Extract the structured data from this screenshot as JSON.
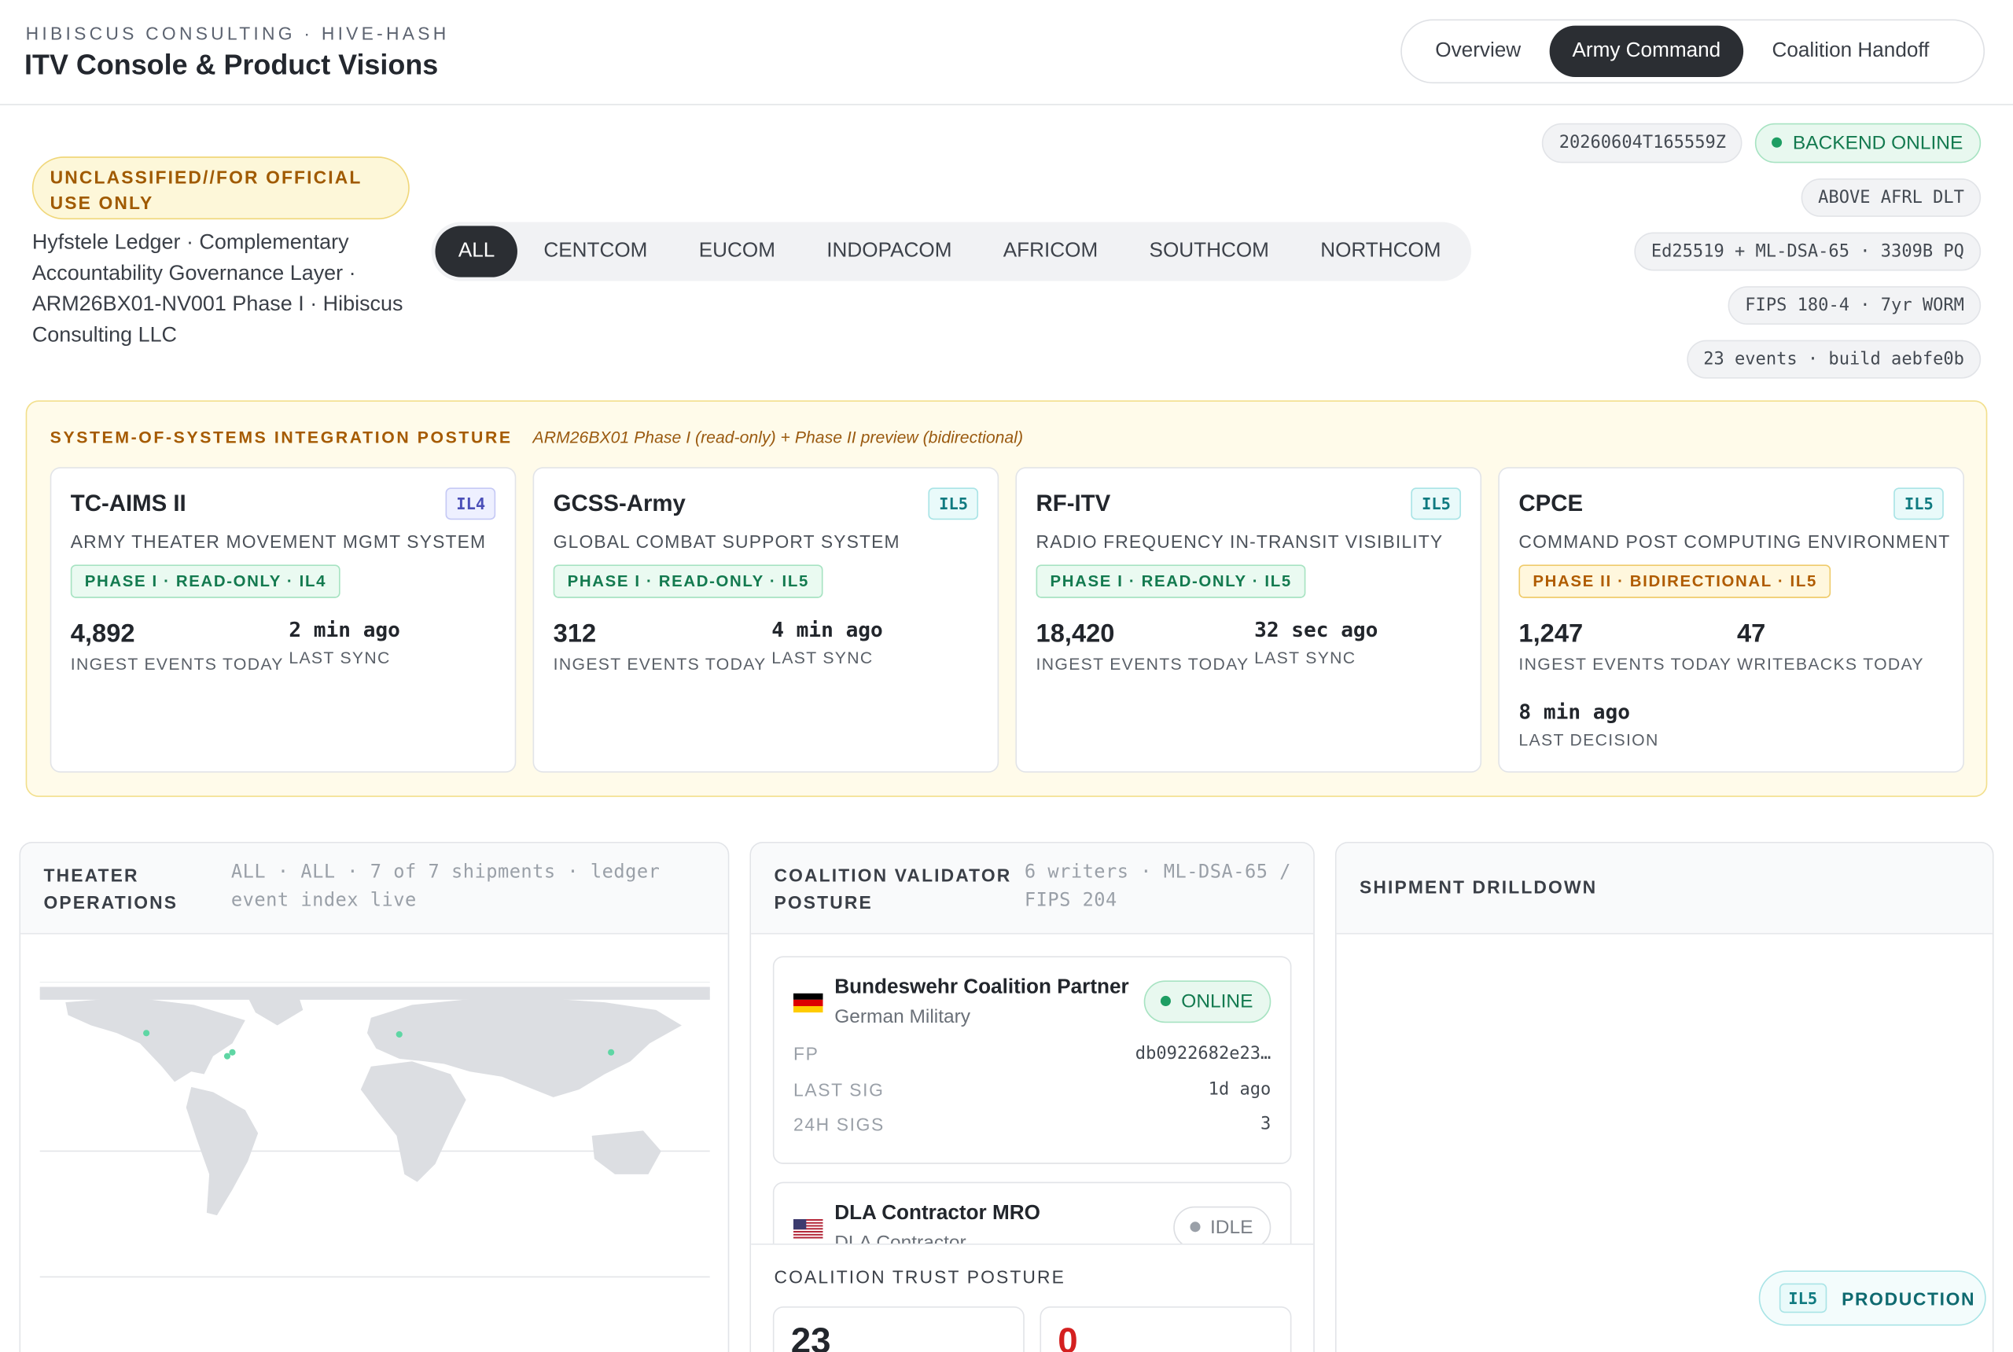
{
  "header": {
    "org": "HIBISCUS CONSULTING · HIVE-HASH",
    "title": "ITV Console & Product Visions",
    "tabs": [
      "Overview",
      "Army Command",
      "Coalition Handoff"
    ]
  },
  "classification": "UNCLASSIFIED//FOR OFFICIAL USE ONLY",
  "description": "Hyfstele Ledger · Complementary Accountability Governance Layer · ARM26BX01-NV001 Phase I · Hibiscus Consulting LLC",
  "commands": [
    "ALL",
    "CENTCOM",
    "EUCOM",
    "INDOPACOM",
    "AFRICOM",
    "SOUTHCOM",
    "NORTHCOM"
  ],
  "status": {
    "timestamp": "20260604T165559Z",
    "backend": "BACKEND ONLINE",
    "chips": [
      "ABOVE AFRL DLT",
      "Ed25519 + ML-DSA-65 · 3309B PQ",
      "FIPS 180-4 · 7yr WORM",
      "23 events · build aebfe0b"
    ]
  },
  "integration": {
    "title": "SYSTEM-OF-SYSTEMS INTEGRATION POSTURE",
    "subtitle": "ARM26BX01 Phase I (read-only) + Phase II preview (bidirectional)",
    "systems": [
      {
        "name": "TC-AIMS II",
        "level": "IL4",
        "description": "ARMY THEATER MOVEMENT MGMT SYSTEM",
        "phase": "PHASE I · READ-ONLY · IL4",
        "metrics": [
          {
            "value": "4,892",
            "label": "INGEST EVENTS TODAY"
          },
          {
            "value": "2 min ago",
            "label": "LAST SYNC"
          }
        ]
      },
      {
        "name": "GCSS-Army",
        "level": "IL5",
        "description": "GLOBAL COMBAT SUPPORT SYSTEM",
        "phase": "PHASE I · READ-ONLY · IL5",
        "metrics": [
          {
            "value": "312",
            "label": "INGEST EVENTS TODAY"
          },
          {
            "value": "4 min ago",
            "label": "LAST SYNC"
          }
        ]
      },
      {
        "name": "RF-ITV",
        "level": "IL5",
        "description": "RADIO FREQUENCY IN-TRANSIT VISIBILITY",
        "phase": "PHASE I · READ-ONLY · IL5",
        "metrics": [
          {
            "value": "18,420",
            "label": "INGEST EVENTS TODAY"
          },
          {
            "value": "32 sec ago",
            "label": "LAST SYNC"
          }
        ]
      },
      {
        "name": "CPCE",
        "level": "IL5",
        "description": "COMMAND POST COMPUTING ENVIRONMENT",
        "phase": "PHASE II · BIDIRECTIONAL · IL5",
        "metrics": [
          {
            "value": "1,247",
            "label": "INGEST EVENTS TODAY"
          },
          {
            "value": "47",
            "label": "WRITEBACKS TODAY"
          },
          {
            "value": "8 min ago",
            "label": "LAST DECISION"
          }
        ]
      }
    ]
  },
  "theater": {
    "title": "THEATER OPERATIONS",
    "meta": "ALL · ALL · 7 of 7 shipments · ledger event index live"
  },
  "validators": {
    "title": "COALITION VALIDATOR POSTURE",
    "meta": "6 writers · ML-DSA-65 / FIPS 204",
    "items": [
      {
        "name": "Bundeswehr Coalition Partner",
        "org": "German Military",
        "status": "ONLINE",
        "fields": [
          {
            "label": "FP",
            "value": "db0922682e23…"
          },
          {
            "label": "LAST SIG",
            "value": "1d ago"
          },
          {
            "label": "24H SIGS",
            "value": "3"
          }
        ]
      },
      {
        "name": "DLA Contractor MRO",
        "org": "DLA Contractor",
        "status": "IDLE",
        "fields": []
      }
    ]
  },
  "trust": {
    "title": "COALITION TRUST POSTURE",
    "values": [
      "23",
      "0"
    ]
  },
  "drilldown": {
    "title": "SHIPMENT DRILLDOWN"
  },
  "badge": {
    "level": "IL5",
    "label": "PRODUCTION"
  }
}
